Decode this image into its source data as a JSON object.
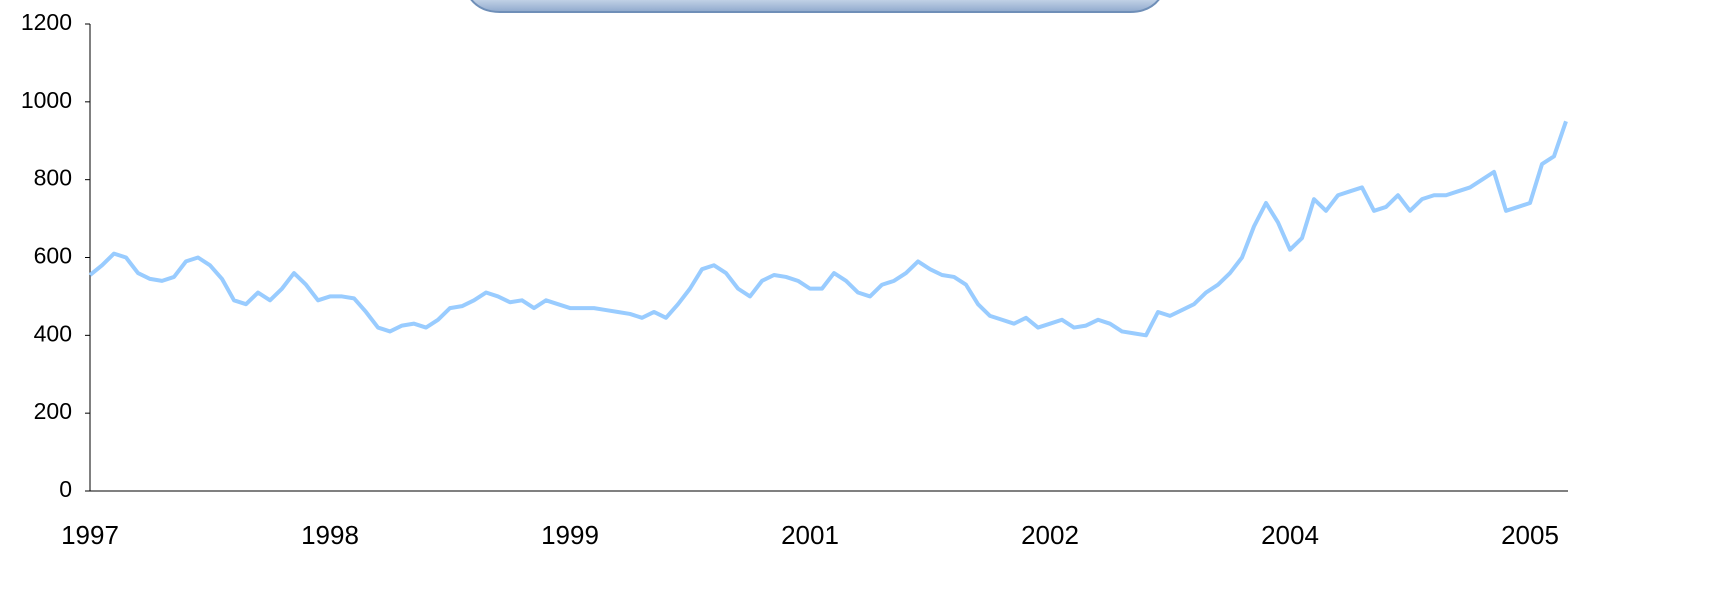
{
  "chart_data": {
    "type": "line",
    "categories": [
      "1997",
      null,
      null,
      null,
      null,
      null,
      null,
      null,
      null,
      null,
      null,
      null,
      null,
      null,
      null,
      null,
      null,
      null,
      null,
      null,
      "1998",
      null,
      null,
      null,
      null,
      null,
      null,
      null,
      null,
      null,
      null,
      null,
      null,
      null,
      null,
      null,
      null,
      null,
      null,
      null,
      "1999",
      null,
      null,
      null,
      null,
      null,
      null,
      null,
      null,
      null,
      null,
      null,
      null,
      null,
      null,
      null,
      null,
      null,
      null,
      null,
      "2001",
      null,
      null,
      null,
      null,
      null,
      null,
      null,
      null,
      null,
      null,
      null,
      null,
      null,
      null,
      null,
      null,
      null,
      null,
      null,
      "2002",
      null,
      null,
      null,
      null,
      null,
      null,
      null,
      null,
      null,
      null,
      null,
      null,
      null,
      null,
      null,
      null,
      null,
      null,
      null,
      "2004",
      null,
      null,
      null,
      null,
      null,
      null,
      null,
      null,
      null,
      null,
      null,
      null,
      null,
      null,
      null,
      null,
      null,
      null,
      null,
      "2005",
      null,
      null,
      null
    ],
    "values": [
      555,
      580,
      610,
      600,
      560,
      545,
      540,
      550,
      590,
      600,
      580,
      545,
      490,
      480,
      510,
      490,
      520,
      560,
      530,
      490,
      500,
      500,
      495,
      460,
      420,
      410,
      425,
      430,
      420,
      440,
      470,
      475,
      490,
      510,
      500,
      485,
      490,
      470,
      490,
      480,
      470,
      470,
      470,
      465,
      460,
      455,
      445,
      460,
      445,
      480,
      520,
      570,
      580,
      560,
      520,
      500,
      540,
      555,
      550,
      540,
      520,
      520,
      560,
      540,
      510,
      500,
      530,
      540,
      560,
      590,
      570,
      555,
      550,
      530,
      480,
      450,
      440,
      430,
      445,
      420,
      430,
      440,
      420,
      425,
      440,
      430,
      410,
      405,
      400,
      460,
      450,
      465,
      480,
      510,
      530,
      560,
      600,
      680,
      740,
      690,
      620,
      650,
      750,
      720,
      760,
      770,
      780,
      720,
      730,
      760,
      720,
      750,
      760,
      760,
      770,
      780,
      800,
      820,
      720,
      730,
      740,
      840,
      860,
      950
    ],
    "color": "#99ccff",
    "ylim": [
      0,
      1200
    ],
    "yticks": [
      0,
      200,
      400,
      600,
      800,
      1000,
      1200
    ]
  }
}
